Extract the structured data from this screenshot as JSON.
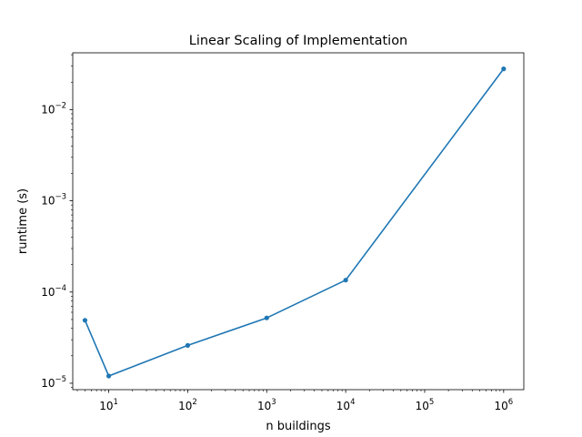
{
  "chart_data": {
    "type": "line",
    "title": "Linear Scaling of Implementation",
    "xlabel": "n buildings",
    "ylabel": "runtime (s)",
    "xscale": "log",
    "yscale": "log",
    "xlim": [
      3.5,
      1800000
    ],
    "ylim": [
      8.5e-06,
      0.042
    ],
    "x_ticks": [
      {
        "value": 10,
        "base": "10",
        "exp": "1"
      },
      {
        "value": 100,
        "base": "10",
        "exp": "2"
      },
      {
        "value": 1000,
        "base": "10",
        "exp": "3"
      },
      {
        "value": 10000,
        "base": "10",
        "exp": "4"
      },
      {
        "value": 100000,
        "base": "10",
        "exp": "5"
      },
      {
        "value": 1000000,
        "base": "10",
        "exp": "6"
      }
    ],
    "y_ticks": [
      {
        "value": 1e-05,
        "base": "10",
        "exp": "−5"
      },
      {
        "value": 0.0001,
        "base": "10",
        "exp": "−4"
      },
      {
        "value": 0.001,
        "base": "10",
        "exp": "−3"
      },
      {
        "value": 0.01,
        "base": "10",
        "exp": "−2"
      }
    ],
    "grid": false,
    "series": [
      {
        "color": "#1f77b4",
        "x": [
          5,
          10,
          100,
          1000,
          10000,
          1000000
        ],
        "y": [
          4.9e-05,
          1.2e-05,
          2.6e-05,
          5.2e-05,
          0.000135,
          0.028
        ]
      }
    ]
  }
}
